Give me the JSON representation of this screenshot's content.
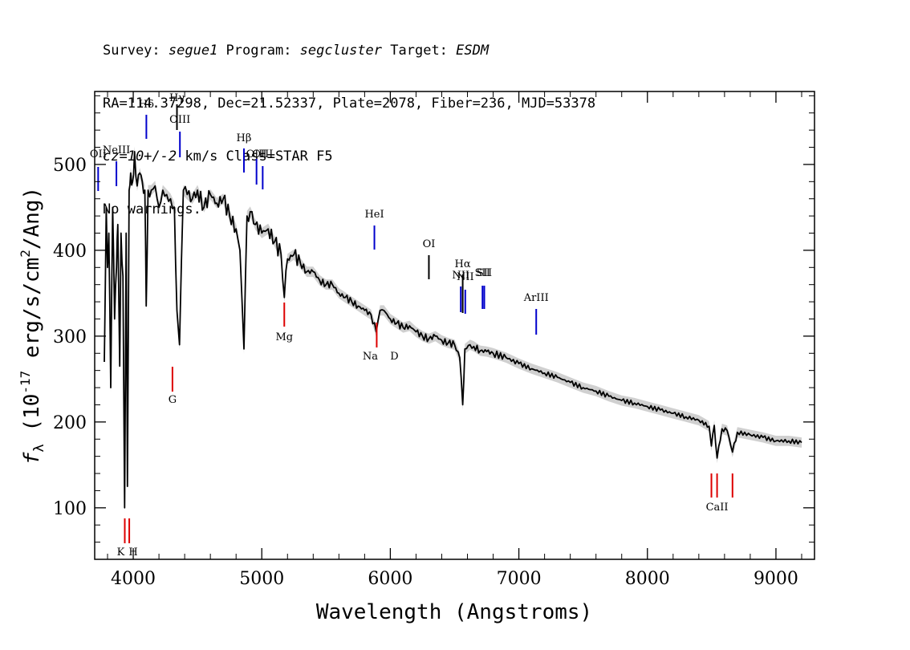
{
  "header": {
    "line1": {
      "survey_label": "Survey: ",
      "survey": "segue1",
      "program_label": " Program: ",
      "program": "segcluster",
      "target_label": " Target: ",
      "target": "ESDM"
    },
    "line2": "RA=114.37298, Dec=21.52337, Plate=2078, Fiber=236, MJD=53378",
    "line3": {
      "cz": "cz=10+/-2",
      "rest": " km/s Class=STAR F5"
    },
    "line4": "No warnings."
  },
  "chart_data": {
    "type": "line",
    "xlabel": "Wavelength (Angstroms)",
    "ylabel_parts": {
      "f": "f",
      "sub": "λ",
      "open": " (10",
      "exp": "-17",
      "mid": " erg/s/cm",
      "exp2": "2",
      "close": "/Ang)"
    },
    "xlim": [
      3700,
      9300
    ],
    "ylim": [
      40,
      585
    ],
    "x_ticks": [
      4000,
      5000,
      6000,
      7000,
      8000,
      9000
    ],
    "y_ticks": [
      100,
      200,
      300,
      400,
      500
    ],
    "series": [
      {
        "color": "#000000",
        "x": [
          3775,
          3790,
          3800,
          3810,
          3825,
          3840,
          3855,
          3870,
          3880,
          3895,
          3905,
          3920,
          3933,
          3945,
          3955,
          3968,
          3980,
          3995,
          4010,
          4030,
          4050,
          4070,
          4090,
          4101,
          4115,
          4140,
          4170,
          4200,
          4230,
          4260,
          4290,
          4320,
          4340,
          4360,
          4390,
          4420,
          4460,
          4500,
          4550,
          4600,
          4650,
          4700,
          4750,
          4800,
          4830,
          4861,
          4885,
          4910,
          4950,
          5000,
          5050,
          5100,
          5150,
          5175,
          5200,
          5250,
          5300,
          5350,
          5400,
          5450,
          5500,
          5550,
          5600,
          5650,
          5700,
          5750,
          5800,
          5850,
          5890,
          5920,
          5950,
          6000,
          6050,
          6100,
          6150,
          6200,
          6250,
          6300,
          6350,
          6400,
          6450,
          6500,
          6540,
          6563,
          6580,
          6620,
          6650,
          6700,
          6750,
          6800,
          6900,
          7000,
          7100,
          7200,
          7300,
          7400,
          7500,
          7600,
          7700,
          7800,
          7900,
          8000,
          8100,
          8200,
          8300,
          8400,
          8480,
          8498,
          8520,
          8542,
          8580,
          8620,
          8662,
          8700,
          8800,
          8900,
          9000,
          9100,
          9200
        ],
        "values": [
          270,
          450,
          380,
          420,
          240,
          450,
          320,
          380,
          430,
          265,
          420,
          370,
          100,
          420,
          125,
          470,
          490,
          480,
          515,
          475,
          490,
          480,
          470,
          335,
          470,
          470,
          475,
          450,
          470,
          465,
          460,
          450,
          330,
          290,
          470,
          465,
          460,
          470,
          450,
          465,
          455,
          460,
          440,
          425,
          400,
          285,
          440,
          445,
          430,
          420,
          425,
          410,
          395,
          345,
          390,
          395,
          385,
          375,
          375,
          365,
          360,
          360,
          350,
          345,
          340,
          335,
          330,
          325,
          305,
          330,
          330,
          320,
          315,
          310,
          312,
          305,
          300,
          297,
          300,
          295,
          292,
          290,
          275,
          220,
          285,
          290,
          288,
          283,
          282,
          280,
          275,
          268,
          262,
          257,
          252,
          246,
          240,
          236,
          230,
          225,
          222,
          218,
          214,
          210,
          206,
          202,
          195,
          172,
          196,
          158,
          192,
          190,
          165,
          188,
          185,
          182,
          178,
          178,
          176
        ]
      }
    ],
    "emission_lines": [
      {
        "label": "OII",
        "wl": 3727
      },
      {
        "label": "NeIII",
        "wl": 3869
      },
      {
        "label": "Hδ",
        "wl": 4102
      },
      {
        "label": "Hγ",
        "wl": 4340
      },
      {
        "label": "OIII",
        "wl": 4363
      },
      {
        "label": "Hβ",
        "wl": 4861
      },
      {
        "label": "OIII",
        "wl": 4959
      },
      {
        "label": "OIII",
        "wl": 5007
      },
      {
        "label": "HeI",
        "wl": 5876
      },
      {
        "label": "OI",
        "wl": 6300
      },
      {
        "label": "NII",
        "wl": 6548
      },
      {
        "label": "Hα",
        "wl": 6563
      },
      {
        "label": "NII",
        "wl": 6583
      },
      {
        "label": "SII",
        "wl": 6717
      },
      {
        "label": "SII",
        "wl": 6731
      },
      {
        "label": "ArIII",
        "wl": 7135
      }
    ],
    "absorption_lines": [
      {
        "label": "K",
        "wl": 3934
      },
      {
        "label": "H",
        "wl": 3969
      },
      {
        "label": "G",
        "wl": 4305
      },
      {
        "label": "Mg",
        "wl": 5175
      },
      {
        "label": "Na",
        "wl": 5894
      },
      {
        "label": "D",
        "wl": 5894
      },
      {
        "label": "CaII",
        "wl": 8498
      },
      {
        "label": "CaII",
        "wl": 8542
      },
      {
        "label": "CaII",
        "wl": 8662
      }
    ],
    "colors": {
      "emission": "#0000cc",
      "absorption": "#dd0000",
      "spectrum": "#000000",
      "error": "#b0b0b0"
    }
  }
}
